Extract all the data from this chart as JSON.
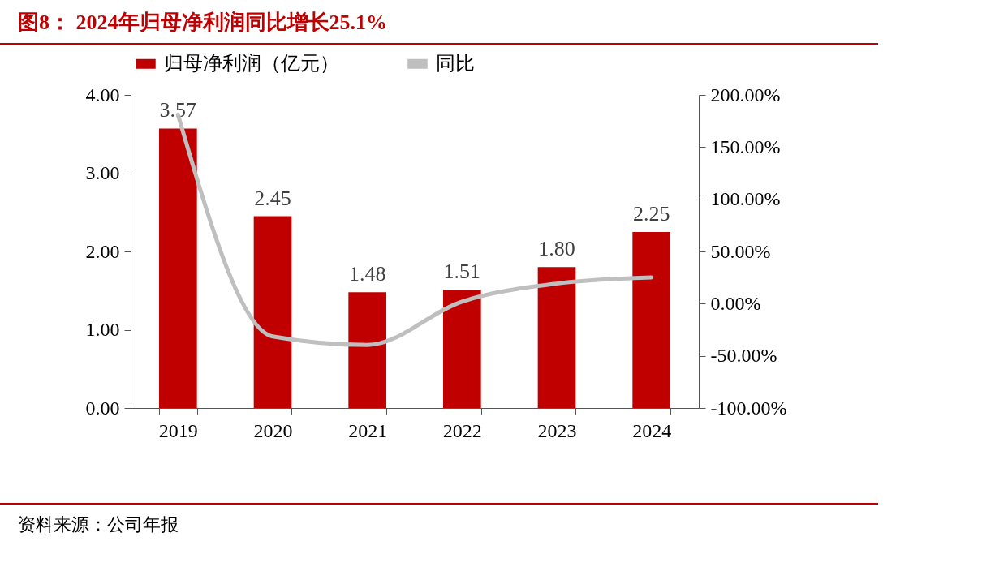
{
  "chart_data": {
    "type": "bar",
    "title": "图8： 2024年归母净利润同比增长25.1%",
    "annotations": [
      "资料来源：公司年报"
    ],
    "categories": [
      "2019",
      "2020",
      "2021",
      "2022",
      "2023",
      "2024"
    ],
    "series": [
      {
        "name": "归母净利润（亿元）",
        "color": "#c00000",
        "values": [
          3.57,
          2.45,
          1.48,
          1.51,
          1.8,
          2.25
        ],
        "value_labels": [
          "3.57",
          "2.45",
          "1.48",
          "1.51",
          "1.80",
          "2.25"
        ]
      },
      {
        "name": "同比",
        "type": "line",
        "axis": "y2",
        "color": "#bfbfbf",
        "values": [
          181,
          -31.4,
          -39.6,
          2.0,
          19.2,
          25.1
        ]
      }
    ],
    "ylim": [
      0,
      4
    ],
    "yticks": [
      {
        "value": 0,
        "label": "0.00"
      },
      {
        "value": 1,
        "label": "1.00"
      },
      {
        "value": 2,
        "label": "2.00"
      },
      {
        "value": 3,
        "label": "3.00"
      },
      {
        "value": 4,
        "label": "4.00"
      }
    ],
    "y2lim": [
      -100,
      200
    ],
    "y2ticks": [
      {
        "value": -100,
        "label": "-100.00%"
      },
      {
        "value": -50,
        "label": "-50.00%"
      },
      {
        "value": 0,
        "label": "0.00%"
      },
      {
        "value": 50,
        "label": "50.00%"
      },
      {
        "value": 100,
        "label": "100.00%"
      },
      {
        "value": 150,
        "label": "150.00%"
      },
      {
        "value": 200,
        "label": "200.00%"
      }
    ],
    "legend": "top",
    "grid": false
  }
}
